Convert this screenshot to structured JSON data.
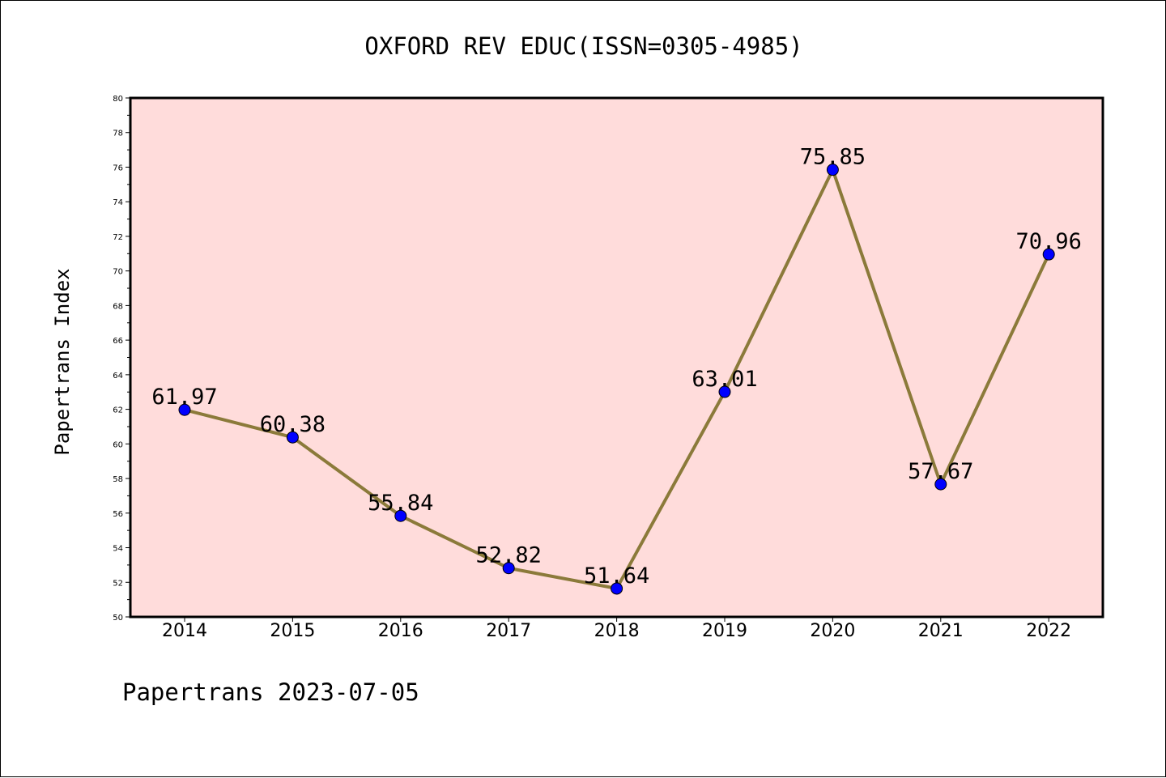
{
  "chart_data": {
    "type": "line",
    "title": "OXFORD REV EDUC(ISSN=0305-4985)",
    "xlabel": "",
    "ylabel": "Papertrans Index",
    "categories": [
      "2014",
      "2015",
      "2016",
      "2017",
      "2018",
      "2019",
      "2020",
      "2021",
      "2022"
    ],
    "series": [
      {
        "values": [
          61.97,
          60.38,
          55.84,
          52.82,
          51.64,
          63.01,
          75.85,
          57.67,
          70.96
        ],
        "data_labels": [
          "61.97",
          "60.38",
          "55.84",
          "52.82",
          "51.64",
          "63.01",
          "75.85",
          "57.67",
          "70.96"
        ],
        "line_color": "#8b7a3a",
        "marker_color": "#0000ff"
      }
    ],
    "ylim": [
      50,
      80
    ],
    "y_ticks": [
      "50",
      "52",
      "54",
      "56",
      "58",
      "60",
      "62",
      "64",
      "66",
      "68",
      "70",
      "72",
      "74",
      "76",
      "78",
      "80"
    ],
    "plot_background": "#ffdcdb",
    "grid": false,
    "legend": "none"
  },
  "footer": {
    "note": "Papertrans 2023-07-05"
  }
}
